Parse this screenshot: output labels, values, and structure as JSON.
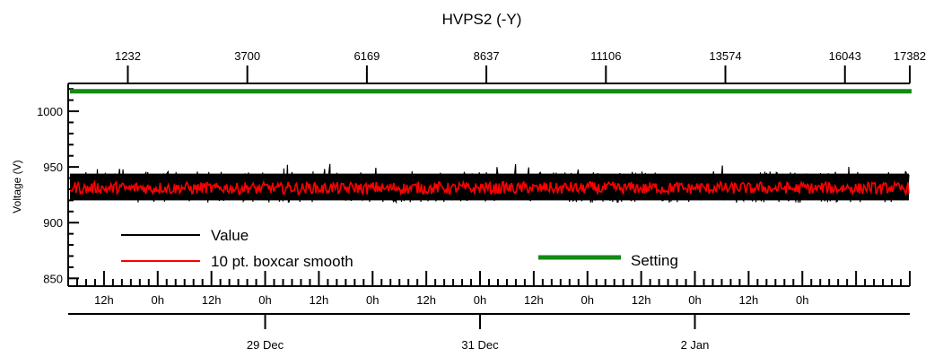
{
  "chart_data": {
    "type": "line",
    "title": "HVPS2 (-Y)",
    "xlabel": "",
    "ylabel": "Voltage (V)",
    "ylim": [
      843,
      1025
    ],
    "y_ticks": [
      850,
      900,
      950,
      1000
    ],
    "top_axis": {
      "range": [
        0,
        17382
      ],
      "ticks": [
        1232,
        3700,
        6169,
        8637,
        11106,
        13574,
        16043,
        17382
      ]
    },
    "time_axis": {
      "start": "2019-12-27T04:00",
      "end": "2020-01-04T00:00",
      "hour_labels": [
        "12h",
        "0h",
        "12h",
        "0h",
        "12h",
        "0h",
        "12h",
        "0h",
        "12h",
        "0h",
        "12h",
        "0h",
        "12h",
        "0h"
      ],
      "date_labels": [
        "29 Dec",
        "31 Dec",
        "2 Jan"
      ]
    },
    "series": [
      {
        "name": "Value",
        "color": "#000000",
        "band": {
          "low": 918,
          "high": 946,
          "occasional_max": 953
        }
      },
      {
        "name": "10 pt. boxcar smooth",
        "color": "#ff0000",
        "band": {
          "low": 924,
          "high": 938,
          "mean": 931
        }
      },
      {
        "name": "Setting",
        "color": "#138a13",
        "values": [
          1018,
          1018
        ]
      }
    ],
    "legend": [
      "Value",
      "10 pt. boxcar smooth",
      "Setting"
    ],
    "grid": false
  }
}
